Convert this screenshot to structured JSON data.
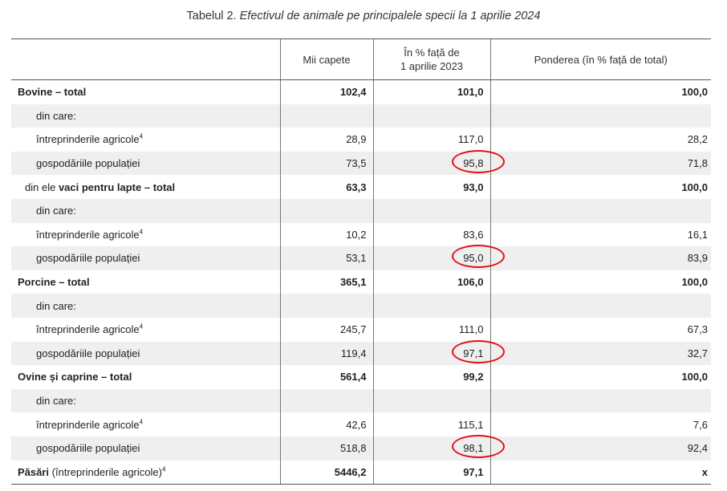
{
  "title": {
    "prefix": "Tabelul 2.",
    "text": "Efectivul de animale pe principalele specii la 1 aprilie 2024"
  },
  "header": {
    "col1": "",
    "col2": "Mii capete",
    "col3_line1": "În % față de",
    "col3_line2": "1 aprilie 2023",
    "col4": "Ponderea (în % față de total)"
  },
  "rows": [
    {
      "label": "Bovine – total",
      "v1": "102,4",
      "v2": "101,0",
      "v3": "100,0"
    },
    {
      "label": "din care:",
      "v1": "",
      "v2": "",
      "v3": ""
    },
    {
      "label": "întreprinderile agricole",
      "sup": "4",
      "v1": "28,9",
      "v2": "117,0",
      "v3": "28,2"
    },
    {
      "label": "gospodăriile populației",
      "v1": "73,5",
      "v2": "95,8",
      "v3": "71,8"
    },
    {
      "label_prefix": "din ele",
      "label": "vaci pentru lapte – total",
      "v1": "63,3",
      "v2": "93,0",
      "v3": "100,0"
    },
    {
      "label": "din care:",
      "v1": "",
      "v2": "",
      "v3": ""
    },
    {
      "label": "întreprinderile agricole",
      "sup": "4",
      "v1": "10,2",
      "v2": "83,6",
      "v3": "16,1"
    },
    {
      "label": "gospodăriile populației",
      "v1": "53,1",
      "v2": "95,0",
      "v3": "83,9"
    },
    {
      "label": "Porcine – total",
      "v1": "365,1",
      "v2": "106,0",
      "v3": "100,0"
    },
    {
      "label": "din care:",
      "v1": "",
      "v2": "",
      "v3": ""
    },
    {
      "label": "întreprinderile agricole",
      "sup": "4",
      "v1": "245,7",
      "v2": "111,0",
      "v3": "67,3"
    },
    {
      "label": "gospodăriile populației",
      "v1": "119,4",
      "v2": "97,1",
      "v3": "32,7"
    },
    {
      "label": "Ovine și caprine – total",
      "v1": "561,4",
      "v2": "99,2",
      "v3": "100,0"
    },
    {
      "label": "din care:",
      "v1": "",
      "v2": "",
      "v3": ""
    },
    {
      "label": "întreprinderile agricole",
      "sup": "4",
      "v1": "42,6",
      "v2": "115,1",
      "v3": "7,6"
    },
    {
      "label": "gospodăriile populației",
      "v1": "518,8",
      "v2": "98,1",
      "v3": "92,4"
    },
    {
      "label": "Păsări",
      "label_suffix": "(întreprinderile agricole)",
      "sup": "4",
      "v1": "5446,2",
      "v2": "97,1",
      "v3": "x"
    }
  ],
  "highlight_color": "#e3101a"
}
